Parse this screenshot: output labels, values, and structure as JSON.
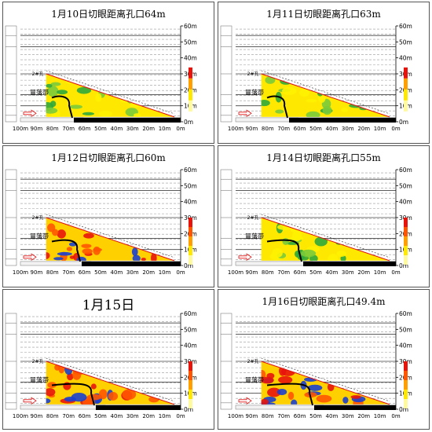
{
  "panels": [
    {
      "title": "1月10日切眼距离孔口64m"
    },
    {
      "title": "1月11日切眼距离孔口63m"
    },
    {
      "title": "1月12日切眼距离孔口60m"
    },
    {
      "title": "1月14日切眼距离孔口55m"
    },
    {
      "title": "1月15日"
    },
    {
      "title": "1月16日切眼距离孔口49.4m"
    }
  ],
  "labels": {
    "caving_zone": "冒落带",
    "hole": "2#孔",
    "y_ticks": [
      "60m",
      "50m",
      "40m",
      "30m",
      "20m",
      "10m",
      "0m"
    ],
    "x_ticks": [
      "100m",
      "90m",
      "80m",
      "70m",
      "60m",
      "50m",
      "40m",
      "30m",
      "20m",
      "10m",
      "0m"
    ]
  }
}
